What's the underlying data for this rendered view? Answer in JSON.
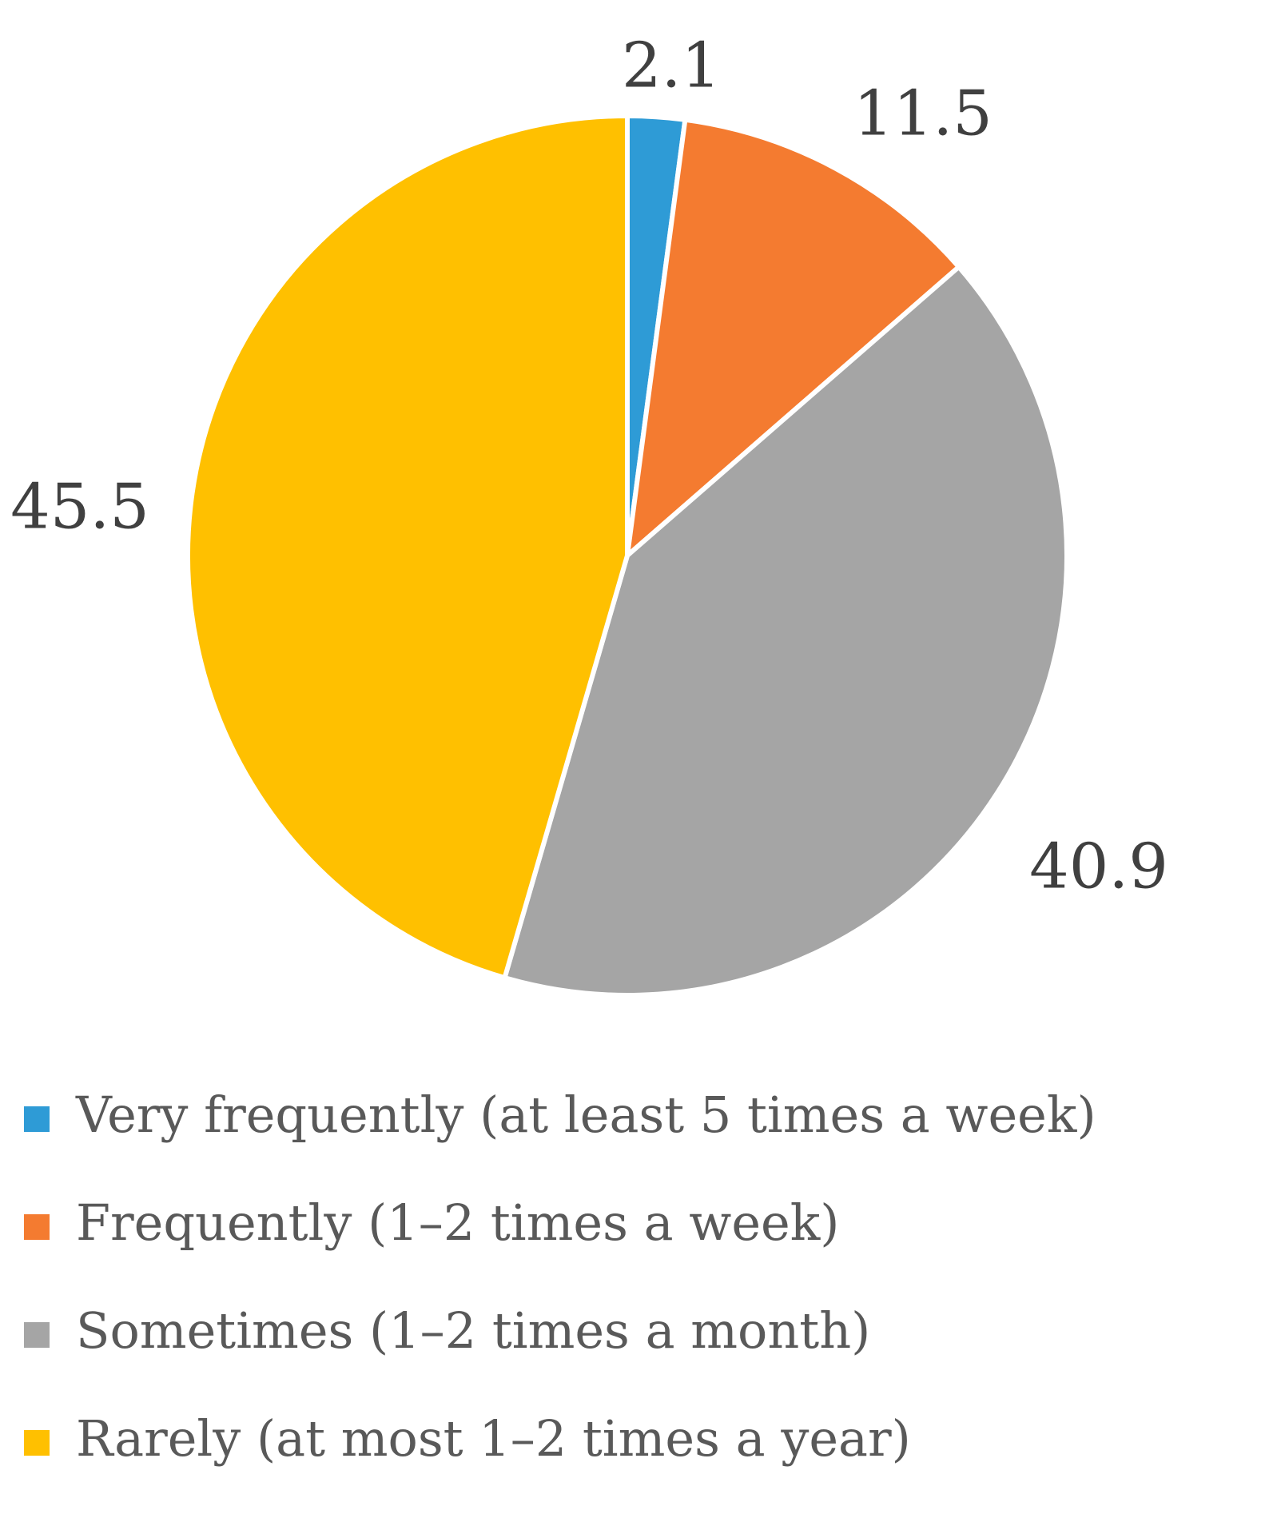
{
  "chart_data": {
    "type": "pie",
    "title": "",
    "categories": [
      "Very frequently (at least 5 times a week)",
      "Frequently (1–2 times a week)",
      "Sometimes (1–2 times a month)",
      "Rarely (at most 1–2 times a year)"
    ],
    "values": [
      2.1,
      11.5,
      40.9,
      45.5
    ],
    "data_labels": [
      "2.1",
      "11.5",
      "40.9",
      "45.5"
    ],
    "colors": [
      "#2E9BD6",
      "#F47B30",
      "#A5A5A5",
      "#FFC000"
    ],
    "start_angle_deg": 0,
    "direction": "clockwise",
    "legend_position": "bottom",
    "slice_border_color": "#FFFFFF"
  }
}
